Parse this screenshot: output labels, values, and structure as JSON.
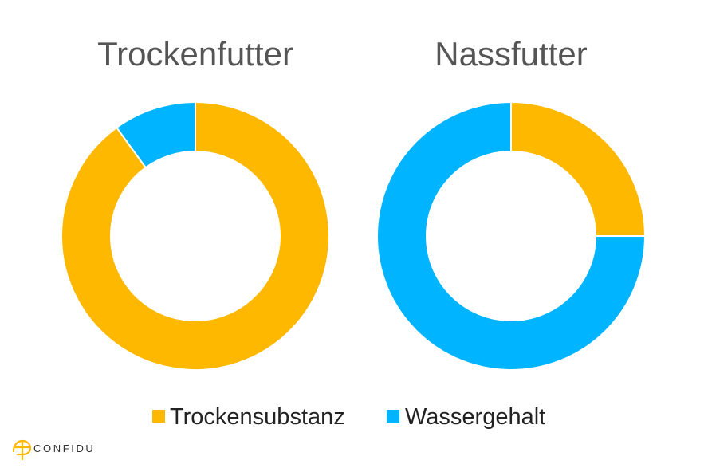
{
  "chart_data": [
    {
      "type": "pie",
      "title": "Trockenfutter",
      "categories": [
        "Trockensubstanz",
        "Wassergehalt"
      ],
      "values": [
        90,
        10
      ],
      "colors": [
        "#FFB800",
        "#00B4FF"
      ]
    },
    {
      "type": "pie",
      "title": "Nassfutter",
      "categories": [
        "Trockensubstanz",
        "Wassergehalt"
      ],
      "values": [
        25,
        75
      ],
      "colors": [
        "#FFB800",
        "#00B4FF"
      ]
    }
  ],
  "legend": {
    "placement": "bottom",
    "items": [
      {
        "label": "Trockensubstanz",
        "color": "#FFB800"
      },
      {
        "label": "Wassergehalt",
        "color": "#00B4FF"
      }
    ]
  },
  "logo": {
    "text": "CONFIDU",
    "color": "#FFB800"
  }
}
